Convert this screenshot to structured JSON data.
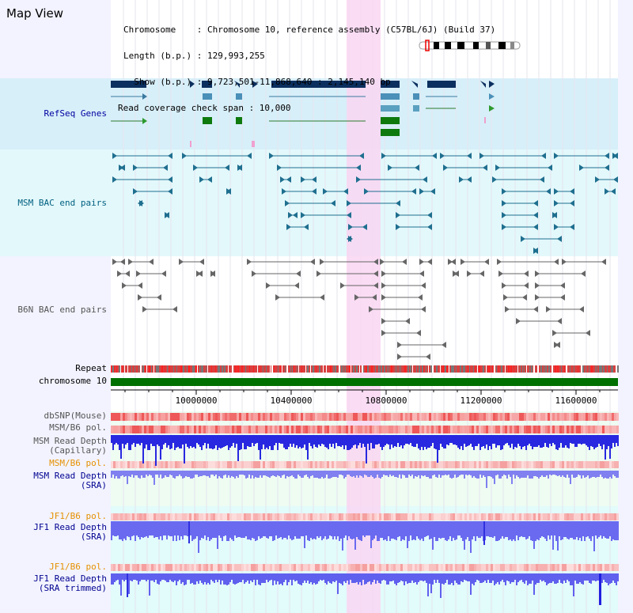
{
  "panel_title": "Map View",
  "info": {
    "line1": "Chromosome    : Chromosome 10, reference assembly (C57BL/6J) (Build 37)",
    "line2": "Length (b.p.) : 129,993,255",
    "line3": "  Show (b.p.) : 9,723,501-11,868,640 : 2,145,140 bp",
    "line4": "Read coverage check span : 10,000"
  },
  "tracks": {
    "refseq": "RefSeq Genes",
    "msm_bac": "MSM BAC end pairs",
    "b6n_bac": "B6N BAC end pairs",
    "repeat": "Repeat",
    "chromosome": "chromosome 10"
  },
  "axis_ticks": [
    "10000000",
    "10400000",
    "10800000",
    "11200000",
    "11600000"
  ],
  "lower_tracks": {
    "dbsnp": "dbSNP(Mouse)",
    "msm_b6_pol_1": "MSM/B6 pol.",
    "msm_depth_cap": "MSM Read Depth\n(Capillary)",
    "msm_b6_pol_2": "MSM/B6 pol.",
    "msm_depth_sra": "MSM Read Depth\n(SRA)",
    "jf1_b6_pol_1": "JF1/B6 pol.",
    "jf1_depth_sra": "JF1 Read Depth\n(SRA)",
    "jf1_b6_pol_2": "JF1/B6 pol.",
    "jf1_depth_trim": "JF1 Read Depth\n(SRA trimmed)"
  },
  "colors": {
    "refseq_label": "#0000a0",
    "msm_label": "#006080",
    "gray_label": "#555555",
    "orange_label": "#e69000",
    "navy_label": "#000090",
    "highlight": "#f9d6f2",
    "chromosome_bar": "#007000"
  }
}
